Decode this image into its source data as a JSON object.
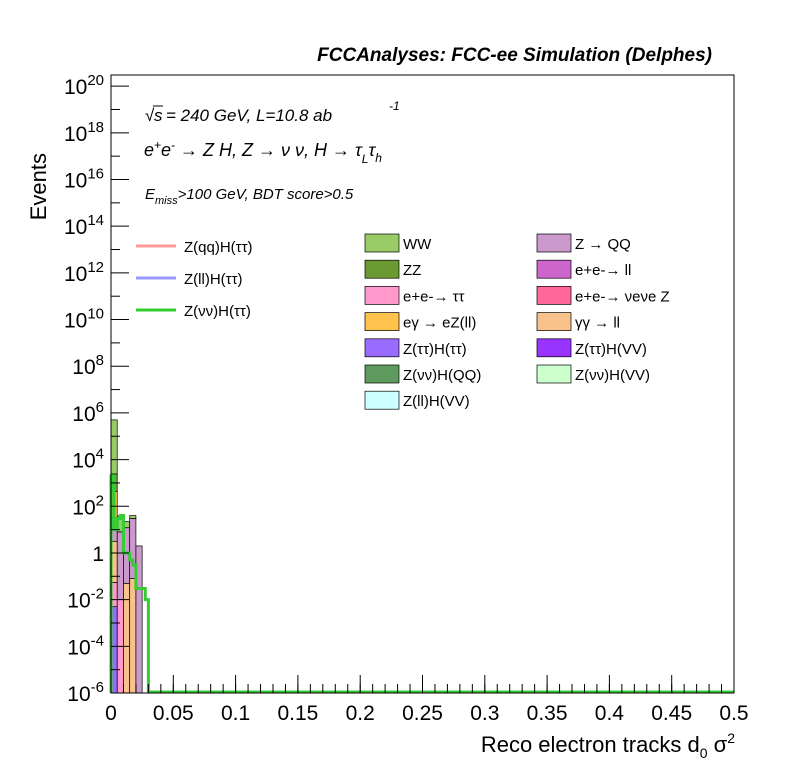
{
  "chart_data": {
    "type": "bar",
    "header": "FCCAnalyses: FCC-ee Simulation (Delphes)",
    "annotations": {
      "energy": "= 240 GeV, L=10.8 ab",
      "energy_sup": "-1",
      "process": "e+e- → Z H, Z → νν, H → τLτh",
      "selection": ">100 GeV, BDT score>0.5",
      "selection_var": "E",
      "selection_var_sub": "miss"
    },
    "xlabel": "Reco electron tracks d",
    "xlabel_sub": "0",
    "xlabel_suffix": "σ",
    "xlabel_sup": "2",
    "ylabel": "Events",
    "xlim": [
      0,
      0.5
    ],
    "ylim": [
      1e-06,
      3e+20
    ],
    "yscale": "log",
    "x_ticks": [
      "0",
      "0.05",
      "0.1",
      "0.15",
      "0.2",
      "0.25",
      "0.3",
      "0.35",
      "0.4",
      "0.45",
      "0.5"
    ],
    "y_ticks": [
      {
        "mant": "10",
        "exp": "-6",
        "value": 1e-06
      },
      {
        "mant": "10",
        "exp": "-4",
        "value": 0.0001
      },
      {
        "mant": "10",
        "exp": "-2",
        "value": 0.01
      },
      {
        "mant": "1",
        "exp": "",
        "value": 1
      },
      {
        "mant": "10",
        "exp": "2",
        "value": 100.0
      },
      {
        "mant": "10",
        "exp": "4",
        "value": 10000.0
      },
      {
        "mant": "10",
        "exp": "6",
        "value": 1000000.0
      },
      {
        "mant": "10",
        "exp": "8",
        "value": 100000000.0
      },
      {
        "mant": "10",
        "exp": "10",
        "value": 10000000000.0
      },
      {
        "mant": "10",
        "exp": "12",
        "value": 1000000000000.0
      },
      {
        "mant": "10",
        "exp": "14",
        "value": 100000000000000.0
      },
      {
        "mant": "10",
        "exp": "16",
        "value": 1e+16
      },
      {
        "mant": "10",
        "exp": "18",
        "value": 1e+18
      },
      {
        "mant": "10",
        "exp": "20",
        "value": 1e+20
      }
    ],
    "bin_width": 0.005,
    "stacked_backgrounds": [
      {
        "bin_low": 0.0,
        "layers": [
          {
            "name": "Z(ττ)H(ττ)",
            "color": "#9a6bff",
            "value": 0.005
          },
          {
            "name": "e+e- → ττ",
            "color": "#ff99cc",
            "value": 0.05
          },
          {
            "name": "γγ → ll",
            "color": "#f9c18b",
            "value": 3
          },
          {
            "name": "Z → QQ",
            "color": "#cc99cc",
            "value": 30
          },
          {
            "name": "eγ → eZ(ll)",
            "color": "#ffc34d",
            "value": 400
          },
          {
            "name": "ZZ",
            "color": "#6b9a33",
            "value": 2000
          },
          {
            "name": "WW",
            "color": "#99cc66",
            "value": 500000
          }
        ]
      },
      {
        "bin_low": 0.005,
        "layers": [
          {
            "name": "e+e- → ττ",
            "color": "#ff99cc",
            "value": 0.01
          },
          {
            "name": "Z → QQ",
            "color": "#cc99cc",
            "value": 8
          },
          {
            "name": "WW",
            "color": "#99cc66",
            "value": 30
          }
        ]
      },
      {
        "bin_low": 0.01,
        "layers": [
          {
            "name": "γγ → ll",
            "color": "#f9c18b",
            "value": 0.05
          },
          {
            "name": "Z → QQ",
            "color": "#cc99cc",
            "value": 12
          },
          {
            "name": "WW",
            "color": "#99cc66",
            "value": 10
          }
        ]
      },
      {
        "bin_low": 0.015,
        "layers": [
          {
            "name": "γγ → ll",
            "color": "#f9c18b",
            "value": 0.08
          },
          {
            "name": "Z → QQ",
            "color": "#cc99cc",
            "value": 30
          },
          {
            "name": "WW",
            "color": "#99cc66",
            "value": 10
          }
        ]
      },
      {
        "bin_low": 0.02,
        "layers": [
          {
            "name": "Z → QQ",
            "color": "#cc99cc",
            "value": 2
          }
        ]
      }
    ],
    "signal_lines": [
      {
        "name": "Z(qq)H(ττ)",
        "color": "#ff9999",
        "values": []
      },
      {
        "name": "Z(ll)H(ττ)",
        "color": "#9999ff",
        "values": []
      },
      {
        "name": "Z(νν)H(ττ)",
        "color": "#33cc33",
        "values": [
          {
            "x0": 0.0,
            "x1": 0.0025,
            "y": 2000
          },
          {
            "x0": 0.0025,
            "x1": 0.005,
            "y": 10
          },
          {
            "x0": 0.005,
            "x1": 0.0075,
            "y": 30
          },
          {
            "x0": 0.0075,
            "x1": 0.01,
            "y": 40
          },
          {
            "x0": 0.01,
            "x1": 0.015,
            "y": 1
          },
          {
            "x0": 0.015,
            "x1": 0.0175,
            "y": 0.5
          },
          {
            "x0": 0.0175,
            "x1": 0.02,
            "y": 0.3
          },
          {
            "x0": 0.02,
            "x1": 0.0275,
            "y": 0.03
          },
          {
            "x0": 0.0275,
            "x1": 0.03,
            "y": 0.01
          }
        ]
      }
    ],
    "legend_signal": [
      {
        "label": "Z(qq)H(ττ)",
        "color": "#ff9999"
      },
      {
        "label": "Z(ll)H(ττ)",
        "color": "#9999ff"
      },
      {
        "label": "Z(νν)H(ττ)",
        "color": "#33cc33"
      }
    ],
    "legend_col1": [
      {
        "label": "WW",
        "color": "#99cc66"
      },
      {
        "label": "ZZ",
        "color": "#6b9a33"
      },
      {
        "label": "e+e-→ ττ",
        "color": "#ff99cc"
      },
      {
        "label": "eγ → eZ(ll)",
        "color": "#ffc34d"
      },
      {
        "label": "Z(ττ)H(ττ)",
        "color": "#9a6bff"
      },
      {
        "label": "Z(νν)H(QQ)",
        "color": "#5e9a5e"
      },
      {
        "label": "Z(ll)H(VV)",
        "color": "#ccffff"
      }
    ],
    "legend_col2": [
      {
        "label": "Z → QQ",
        "color": "#cc99cc"
      },
      {
        "label": "e+e-→ ll",
        "color": "#cc66cc"
      },
      {
        "label": "e+e-→ νeνe Z",
        "color": "#ff6699"
      },
      {
        "label": "γγ → ll",
        "color": "#f9c18b"
      },
      {
        "label": "Z(ττ)H(VV)",
        "color": "#9933ff"
      },
      {
        "label": "Z(νν)H(VV)",
        "color": "#ccffcc"
      }
    ]
  }
}
